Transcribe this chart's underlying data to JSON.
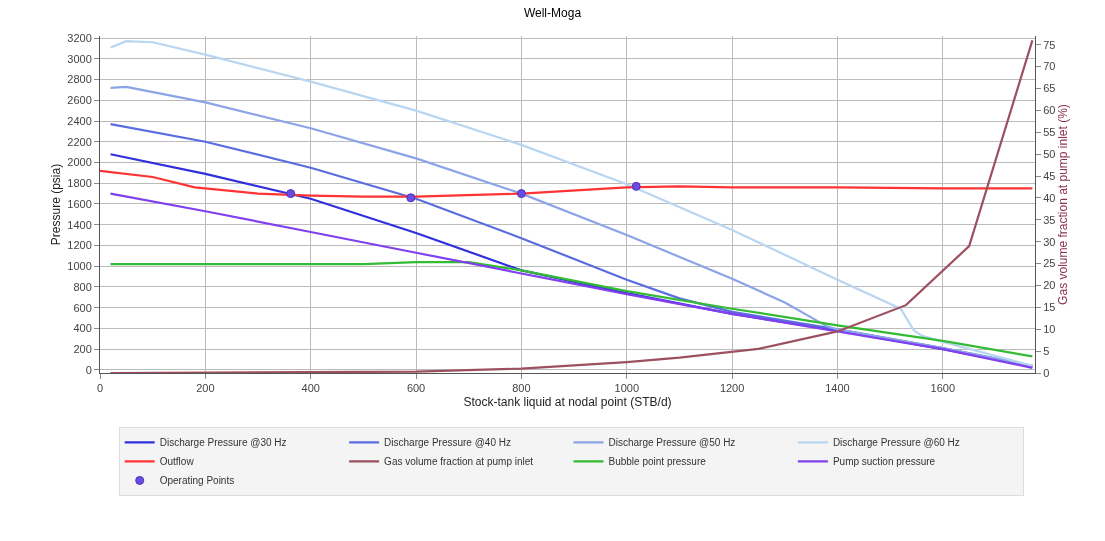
{
  "chart_data": {
    "type": "line",
    "title": "Well-Moga",
    "xlabel": "Stock-tank liquid at nodal point (STB/d)",
    "ylabel": "Pressure (psia)",
    "y2label": "Gas volume fraction at pump inlet (%)",
    "xlim": [
      0,
      1775
    ],
    "xticks": [
      0,
      200,
      400,
      600,
      800,
      1000,
      1200,
      1400,
      1600
    ],
    "ylim": [
      -30,
      3220
    ],
    "yticks": [
      0,
      200,
      400,
      600,
      800,
      1000,
      1200,
      1400,
      1600,
      1800,
      2000,
      2200,
      2400,
      2600,
      2800,
      3000,
      3200
    ],
    "y2lim": [
      0,
      77
    ],
    "y2ticks": [
      0,
      5,
      10,
      15,
      20,
      25,
      30,
      35,
      40,
      45,
      50,
      55,
      60,
      65,
      70,
      75
    ],
    "grid": true,
    "legend": "bottom",
    "series": [
      {
        "name": "Discharge Pressure @30 Hz",
        "color": "#3030dd",
        "x": [
          20,
          200,
          400,
          600,
          800,
          1000,
          1200,
          1400,
          1600,
          1770
        ],
        "values": [
          2080,
          1890,
          1650,
          1320,
          960,
          740,
          540,
          380,
          200,
          30
        ]
      },
      {
        "name": "Discharge Pressure @40 Hz",
        "color": "#5a6de0",
        "x": [
          20,
          200,
          400,
          600,
          800,
          1000,
          1100,
          1200,
          1400,
          1600,
          1770
        ],
        "values": [
          2370,
          2200,
          1950,
          1650,
          1270,
          870,
          690,
          560,
          390,
          210,
          40
        ]
      },
      {
        "name": "Discharge Pressure @50 Hz",
        "color": "#8aa4e6",
        "x": [
          20,
          50,
          200,
          400,
          600,
          800,
          1000,
          1200,
          1300,
          1380,
          1400,
          1600,
          1770
        ],
        "values": [
          2720,
          2730,
          2580,
          2330,
          2040,
          1700,
          1300,
          880,
          650,
          420,
          390,
          210,
          40
        ]
      },
      {
        "name": "Discharge Pressure @60 Hz",
        "color": "#b8d6f2",
        "x": [
          20,
          50,
          100,
          200,
          400,
          600,
          800,
          1000,
          1200,
          1400,
          1520,
          1545,
          1560,
          1600,
          1770
        ],
        "values": [
          3110,
          3170,
          3160,
          3040,
          2780,
          2500,
          2170,
          1790,
          1350,
          870,
          590,
          380,
          330,
          270,
          40
        ]
      },
      {
        "name": "Outflow",
        "color": "#ff3333",
        "x": [
          0,
          100,
          180,
          300,
          400,
          500,
          600,
          800,
          1000,
          1100,
          1200,
          1400,
          1600,
          1770
        ],
        "values": [
          1920,
          1860,
          1760,
          1700,
          1680,
          1670,
          1670,
          1700,
          1760,
          1770,
          1760,
          1760,
          1750,
          1750
        ]
      },
      {
        "name": "Gas volume fraction at pump inlet",
        "color": "#9c5060",
        "axis": "y2",
        "x": [
          20,
          600,
          800,
          1000,
          1100,
          1250,
          1400,
          1530,
          1650,
          1770
        ],
        "values": [
          0,
          0.3,
          1,
          2.5,
          3.5,
          5.5,
          9.5,
          15.5,
          29,
          76
        ]
      },
      {
        "name": "Bubble point pressure",
        "color": "#33bb33",
        "x": [
          20,
          500,
          600,
          700,
          800,
          1000,
          1200,
          1400,
          1600,
          1770
        ],
        "values": [
          1020,
          1020,
          1040,
          1040,
          960,
          760,
          590,
          430,
          280,
          130
        ]
      },
      {
        "name": "Pump suction pressure",
        "color": "#8040ee",
        "x": [
          20,
          200,
          400,
          600,
          800,
          1000,
          1200,
          1400,
          1600,
          1770
        ],
        "values": [
          1700,
          1530,
          1330,
          1130,
          930,
          730,
          540,
          370,
          200,
          20
        ]
      },
      {
        "name": "Operating Points",
        "type": "scatter",
        "marker": "circle",
        "color": "#6a4de0",
        "x": [
          362,
          590,
          800,
          1018
        ],
        "values": [
          1700,
          1660,
          1700,
          1770
        ]
      }
    ]
  }
}
